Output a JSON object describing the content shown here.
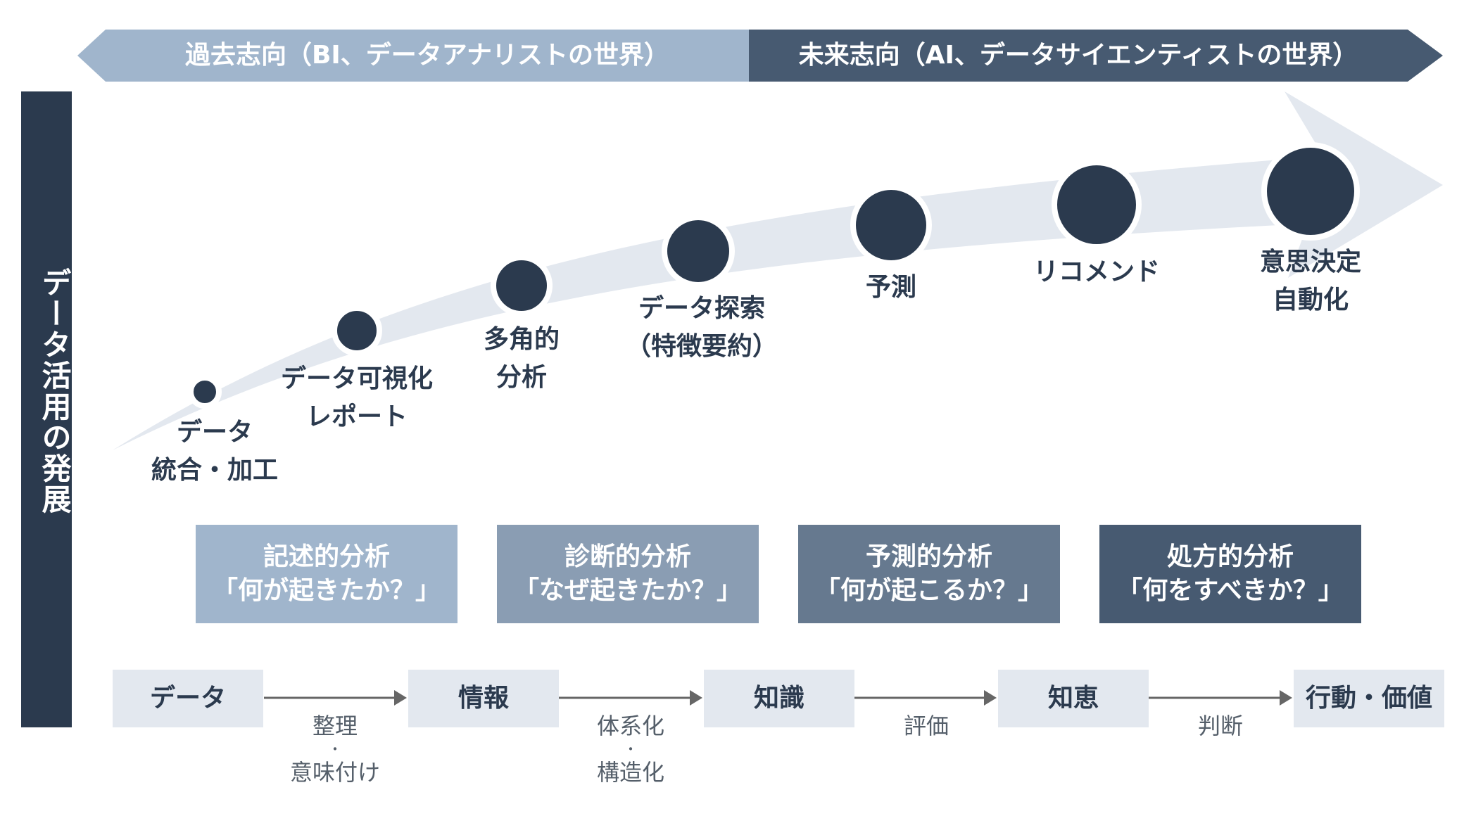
{
  "header": {
    "past_label": "過去志向（BI、データアナリストの世界）",
    "future_label": "未来志向（AI、データサイエンティストの世界）",
    "past_color": "#a0b5cc",
    "future_color": "#475a71"
  },
  "side_title": "データ活用の発展",
  "stages": [
    {
      "line1": "データ",
      "line2": "統合・加工"
    },
    {
      "line1": "データ可視化",
      "line2": "レポート"
    },
    {
      "line1": "多角的",
      "line2": "分析"
    },
    {
      "line1": "データ探索",
      "line2": "（特徴要約）"
    },
    {
      "line1": "予測",
      "line2": ""
    },
    {
      "line1": "リコメンド",
      "line2": ""
    },
    {
      "line1": "意思決定",
      "line2": "自動化"
    }
  ],
  "analysis_boxes": [
    {
      "title": "記述的分析",
      "question": "「何が起きたか？」",
      "color": "#a0b5cc"
    },
    {
      "title": "診断的分析",
      "question": "「なぜ起きたか？」",
      "color": "#8a9db3"
    },
    {
      "title": "予測的分析",
      "question": "「何が起こるか？」",
      "color": "#66798f"
    },
    {
      "title": "処方的分析",
      "question": "「何をすべきか？」",
      "color": "#475a71"
    }
  ],
  "flow": {
    "steps": [
      "データ",
      "情報",
      "知識",
      "知恵",
      "行動・価値"
    ],
    "transitions": [
      {
        "line1": "整理",
        "dot": "・",
        "line2": "意味付け"
      },
      {
        "line1": "体系化",
        "dot": "・",
        "line2": "構造化"
      },
      {
        "line1": "評価",
        "dot": "",
        "line2": ""
      },
      {
        "line1": "判断",
        "dot": "",
        "line2": ""
      }
    ]
  },
  "colors": {
    "dark": "#2b3a4e",
    "band": "#e3e8ef",
    "arrow_line": "#666666"
  }
}
